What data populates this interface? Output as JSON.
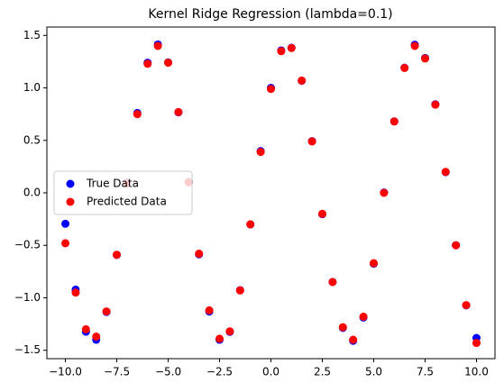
{
  "chart_data": {
    "type": "scatter",
    "title": "Kernel Ridge Regression (lambda=0.1)",
    "x": [
      -10,
      -9.5,
      -9,
      -8.5,
      -8,
      -7.5,
      -7,
      -6.5,
      -6,
      -5.5,
      -5,
      -4.5,
      -4,
      -3.5,
      -3,
      -2.5,
      -2,
      -1.5,
      -1,
      -0.5,
      0,
      0.5,
      1,
      1.5,
      2,
      2.5,
      3,
      3.5,
      4,
      4.5,
      5,
      5.5,
      6,
      6.5,
      7,
      7.5,
      8,
      8.5,
      9,
      9.5,
      10
    ],
    "series": [
      {
        "name": "True Data",
        "color": "#0000ff",
        "values": [
          -0.295,
          -0.922,
          -1.323,
          -1.4,
          -1.135,
          -0.591,
          0.097,
          0.761,
          1.24,
          1.414,
          1.243,
          0.767,
          0.103,
          -0.586,
          -1.131,
          -1.4,
          -1.325,
          -0.927,
          -0.301,
          0.398,
          1,
          1.357,
          1.382,
          1.068,
          0.493,
          -0.203,
          -0.849,
          -1.287,
          -1.41,
          -1.188,
          -0.675,
          0.003,
          0.681,
          1.192,
          1.411,
          1.285,
          0.844,
          0.197,
          -0.499,
          -1.072,
          -1.383
        ]
      },
      {
        "name": "Predicted Data",
        "color": "#ff0000",
        "values": [
          -0.48,
          -0.95,
          -1.3,
          -1.37,
          -1.13,
          -0.59,
          0.09,
          0.75,
          1.23,
          1.4,
          1.24,
          0.77,
          0.1,
          -0.58,
          -1.12,
          -1.39,
          -1.32,
          -0.93,
          -0.3,
          0.39,
          0.99,
          1.35,
          1.38,
          1.07,
          0.49,
          -0.2,
          -0.85,
          -1.28,
          -1.4,
          -1.18,
          -0.67,
          0.0,
          0.68,
          1.19,
          1.4,
          1.28,
          0.84,
          0.2,
          -0.5,
          -1.07,
          -1.43
        ]
      }
    ],
    "xlim": [
      -10.9,
      10.9
    ],
    "ylim": [
      -1.58,
      1.58
    ],
    "xticks": [
      {
        "value": -10,
        "label": "−10.0"
      },
      {
        "value": -7.5,
        "label": "−7.5"
      },
      {
        "value": -5,
        "label": "−5.0"
      },
      {
        "value": -2.5,
        "label": "−2.5"
      },
      {
        "value": 0,
        "label": "0.0"
      },
      {
        "value": 2.5,
        "label": "2.5"
      },
      {
        "value": 5,
        "label": "5.0"
      },
      {
        "value": 7.5,
        "label": "7.5"
      },
      {
        "value": 10,
        "label": "10.0"
      }
    ],
    "yticks": [
      {
        "value": -1.5,
        "label": "−1.5"
      },
      {
        "value": -1,
        "label": "−1.0"
      },
      {
        "value": -0.5,
        "label": "−0.5"
      },
      {
        "value": 0,
        "label": "0.0"
      },
      {
        "value": 0.5,
        "label": "0.5"
      },
      {
        "value": 1,
        "label": "1.0"
      },
      {
        "value": 1.5,
        "label": "1.5"
      }
    ],
    "legend": "center left"
  }
}
